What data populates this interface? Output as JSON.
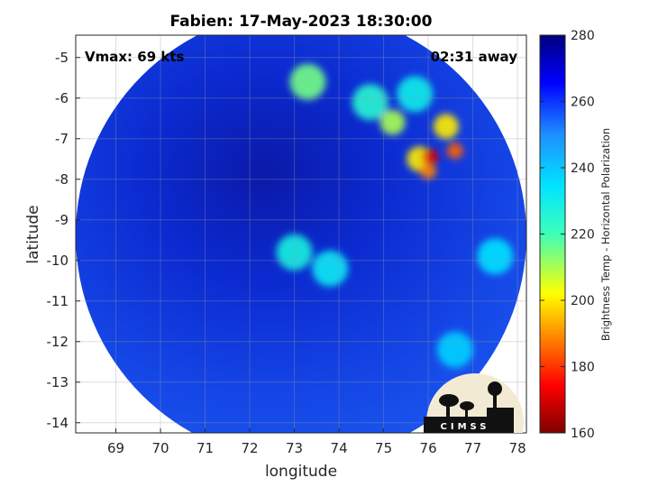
{
  "title": "Fabien: 17-May-2023 18:30:00",
  "vmax_label": "Vmax: 69 kts",
  "away_label": "02:31 away",
  "xlabel": "longitude",
  "ylabel": "latitude",
  "colorbar": {
    "label": "Brightness Temp - Horizontal Polarization",
    "ticks": [
      "160",
      "180",
      "200",
      "220",
      "240",
      "260",
      "280"
    ],
    "min": 160,
    "max": 280,
    "colormap": "jet"
  },
  "logo_text": "CIMSS",
  "chart_data": {
    "type": "heatmap",
    "title": "Fabien: 17-May-2023 18:30:00",
    "xlabel": "longitude",
    "ylabel": "latitude",
    "xlim": [
      68.1,
      78.2
    ],
    "ylim": [
      -14.25,
      -4.45
    ],
    "x_ticks": [
      "69",
      "70",
      "71",
      "72",
      "73",
      "74",
      "75",
      "76",
      "77",
      "78"
    ],
    "y_ticks": [
      "-5",
      "-6",
      "-7",
      "-8",
      "-9",
      "-10",
      "-11",
      "-12",
      "-13",
      "-14"
    ],
    "grid": true,
    "value_range": [
      160,
      280
    ],
    "swath_center": [
      73.1,
      -9.1
    ],
    "features": [
      {
        "lon": 73.0,
        "lat": -9.8,
        "tb": 228
      },
      {
        "lon": 73.8,
        "lat": -10.2,
        "tb": 232
      },
      {
        "lon": 75.8,
        "lat": -7.5,
        "tb": 200
      },
      {
        "lon": 76.0,
        "lat": -7.8,
        "tb": 188
      },
      {
        "lon": 76.05,
        "lat": -7.45,
        "tb": 170
      },
      {
        "lon": 76.6,
        "lat": -7.3,
        "tb": 185
      },
      {
        "lon": 76.4,
        "lat": -6.7,
        "tb": 200
      },
      {
        "lon": 75.2,
        "lat": -6.6,
        "tb": 210
      },
      {
        "lon": 74.7,
        "lat": -6.1,
        "tb": 225
      },
      {
        "lon": 73.3,
        "lat": -5.6,
        "tb": 215
      },
      {
        "lon": 75.7,
        "lat": -5.9,
        "tb": 230
      },
      {
        "lon": 77.5,
        "lat": -9.9,
        "tb": 235
      },
      {
        "lon": 76.6,
        "lat": -12.2,
        "tb": 238
      }
    ]
  }
}
